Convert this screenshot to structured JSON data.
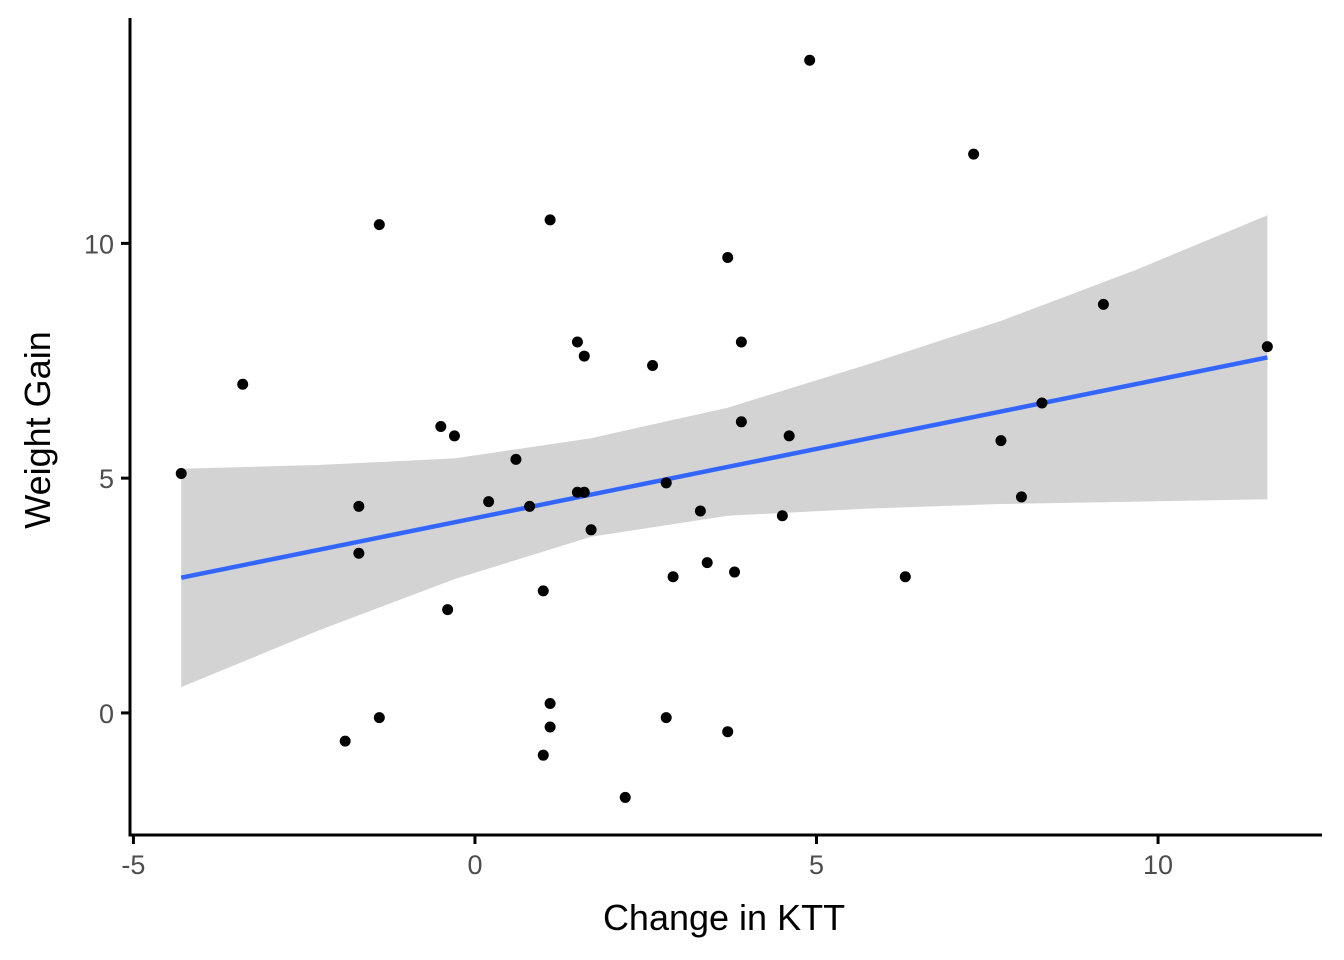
{
  "chart_data": {
    "type": "scatter",
    "xlabel": "Change in KTT",
    "ylabel": "Weight Gain",
    "xlim": [
      -5.05,
      12.4
    ],
    "ylim": [
      -2.6,
      14.8
    ],
    "x_ticks": [
      -5,
      0,
      5,
      10
    ],
    "x_tick_labels": [
      "-5",
      "0",
      "5",
      "10"
    ],
    "y_ticks": [
      0,
      5,
      10
    ],
    "y_tick_labels": [
      "0",
      "5",
      "10"
    ],
    "grid": false,
    "legend": "none",
    "colors": {
      "points": "#000000",
      "fit_line": "#3366FF",
      "confidence_band": "#D3D3D3"
    },
    "points": [
      [
        -4.3,
        5.1
      ],
      [
        -3.4,
        7.0
      ],
      [
        -1.9,
        -0.6
      ],
      [
        -1.7,
        4.4
      ],
      [
        -1.7,
        3.4
      ],
      [
        -1.4,
        10.4
      ],
      [
        -1.4,
        -0.1
      ],
      [
        -0.5,
        6.1
      ],
      [
        -0.4,
        2.2
      ],
      [
        -0.3,
        5.9
      ],
      [
        0.2,
        4.5
      ],
      [
        0.6,
        5.4
      ],
      [
        0.8,
        4.4
      ],
      [
        1.0,
        2.6
      ],
      [
        1.0,
        -0.9
      ],
      [
        1.1,
        10.5
      ],
      [
        1.1,
        0.2
      ],
      [
        1.1,
        -0.3
      ],
      [
        1.5,
        7.9
      ],
      [
        1.5,
        4.7
      ],
      [
        1.6,
        7.6
      ],
      [
        1.6,
        4.7
      ],
      [
        1.7,
        3.9
      ],
      [
        2.2,
        -1.8
      ],
      [
        2.6,
        7.4
      ],
      [
        2.8,
        4.9
      ],
      [
        2.8,
        -0.1
      ],
      [
        2.9,
        2.9
      ],
      [
        3.3,
        4.3
      ],
      [
        3.4,
        3.2
      ],
      [
        3.7,
        9.7
      ],
      [
        3.7,
        -0.4
      ],
      [
        3.8,
        3.0
      ],
      [
        3.9,
        7.9
      ],
      [
        3.9,
        6.2
      ],
      [
        4.5,
        4.2
      ],
      [
        4.6,
        5.9
      ],
      [
        4.9,
        13.9
      ],
      [
        6.3,
        2.9
      ],
      [
        7.3,
        11.9
      ],
      [
        7.7,
        5.8
      ],
      [
        8.0,
        4.6
      ],
      [
        8.3,
        6.6
      ],
      [
        9.2,
        8.7
      ],
      [
        11.6,
        7.8
      ]
    ],
    "fit_line": {
      "x": [
        -4.3,
        11.6
      ],
      "y": [
        2.88,
        7.57
      ]
    },
    "confidence_band": {
      "x": [
        -4.3,
        -2.3,
        -0.3,
        1.7,
        3.7,
        5.7,
        7.7,
        9.7,
        11.6
      ],
      "lower": [
        0.55,
        1.75,
        2.85,
        3.75,
        4.2,
        4.35,
        4.45,
        4.5,
        4.55
      ],
      "upper": [
        5.2,
        5.28,
        5.42,
        5.85,
        6.5,
        7.4,
        8.35,
        9.45,
        10.6
      ]
    }
  }
}
